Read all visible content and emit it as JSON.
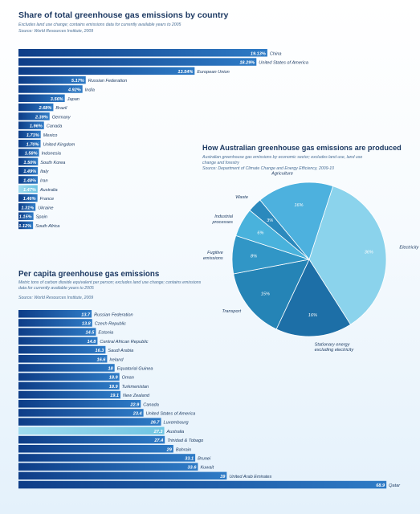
{
  "colors": {
    "bar_dark": "#0e3d87",
    "bar_light": "#2e7bc6",
    "highlight": "#6fc5e3",
    "title": "#1d3a63"
  },
  "share_section": {
    "title": "Share of total greenhouse gas emissions by country",
    "note": "Excludes land use change; contains emissions data for currently available years to 2005",
    "source": "Source: World Resources Institute, 2009"
  },
  "per_capita_section": {
    "title": "Per capita greenhouse gas emissions",
    "note": "Metric tons of carbon dioxide equivalent per person; excludes land use change; contains emissions data for currently available years to 2005",
    "source": "Source: World Resources Institute, 2009"
  },
  "australia_section": {
    "title": "How Australian greenhouse gas emissions are produced",
    "note": "Australian greenhouse gas emissions by economic sector; excludes land use, land use change and forestry",
    "source": "Source: Department of Climate Change and Energy Efficiency, 2009-10"
  },
  "chart_data": [
    {
      "type": "bar",
      "orientation": "horizontal",
      "title": "Share of total greenhouse gas emissions by country",
      "categories": [
        "China",
        "United States of America",
        "European Union",
        "Russian Federation",
        "India",
        "Japan",
        "Brazil",
        "Germany",
        "Canada",
        "Mexico",
        "United Kingdom",
        "Indonesia",
        "South Korea",
        "Italy",
        "Iran",
        "Australia",
        "France",
        "Ukraine",
        "Spain",
        "South Africa"
      ],
      "values": [
        19.13,
        18.29,
        13.54,
        5.17,
        4.92,
        3.56,
        2.68,
        2.39,
        1.96,
        1.71,
        1.7,
        1.58,
        1.5,
        1.49,
        1.48,
        1.47,
        1.46,
        1.31,
        1.15,
        1.12
      ],
      "labels": [
        "19.13%",
        "18.29%",
        "13.54%",
        "5.17%",
        "4.92%",
        "3.56%",
        "2.68%",
        "2.39%",
        "1.96%",
        "1.71%",
        "1.70%",
        "1.58%",
        "1.50%",
        "1.49%",
        "1.48%",
        "1.47%",
        "1.46%",
        "1.31%",
        "1.15%",
        "1.12%"
      ],
      "highlight": "Australia",
      "unit": "%"
    },
    {
      "type": "bar",
      "orientation": "horizontal",
      "title": "Per capita greenhouse gas emissions",
      "categories": [
        "Russian Federation",
        "Czech Republic",
        "Estonia",
        "Central African Republic",
        "Saudi Arabia",
        "Ireland",
        "Equatorial Guinea",
        "Oman",
        "Turkmenistan",
        "New Zealand",
        "Canada",
        "United States of America",
        "Luxembourg",
        "Australia",
        "Trinidad & Tobago",
        "Bahrain",
        "Brunei",
        "Kuwait",
        "United Arab Emirates",
        "Qatar"
      ],
      "values": [
        13.7,
        13.8,
        14.5,
        14.8,
        16.3,
        16.6,
        18,
        18.9,
        18.9,
        19.1,
        22.9,
        23.4,
        26.7,
        27.3,
        27.4,
        29,
        33.1,
        33.6,
        39,
        68.9
      ],
      "labels": [
        "13.7",
        "13.8",
        "14.5",
        "14.8",
        "16.3",
        "16.6",
        "18",
        "18.9",
        "18.9",
        "19.1",
        "22.9",
        "23.4",
        "26.7",
        "27.3",
        "27.4",
        "29",
        "33.1",
        "33.6",
        "39",
        "68.9"
      ],
      "highlight": "Australia"
    },
    {
      "type": "pie",
      "title": "How Australian greenhouse gas emissions are produced",
      "categories": [
        "Electricity",
        "Stationary energy excluding electricity",
        "Transport",
        "Fugitive emissions",
        "Industrial processes",
        "Waste",
        "Agriculture"
      ],
      "values": [
        36,
        16,
        15,
        8,
        6,
        3,
        16
      ],
      "labels": [
        "36%",
        "16%",
        "15%",
        "8%",
        "6%",
        "3%",
        "16%"
      ],
      "colors": [
        "#8bd3ec",
        "#1d6fa7",
        "#2584b6",
        "#3196c6",
        "#49b2dc",
        "#2b89bd",
        "#4db1de"
      ]
    }
  ]
}
